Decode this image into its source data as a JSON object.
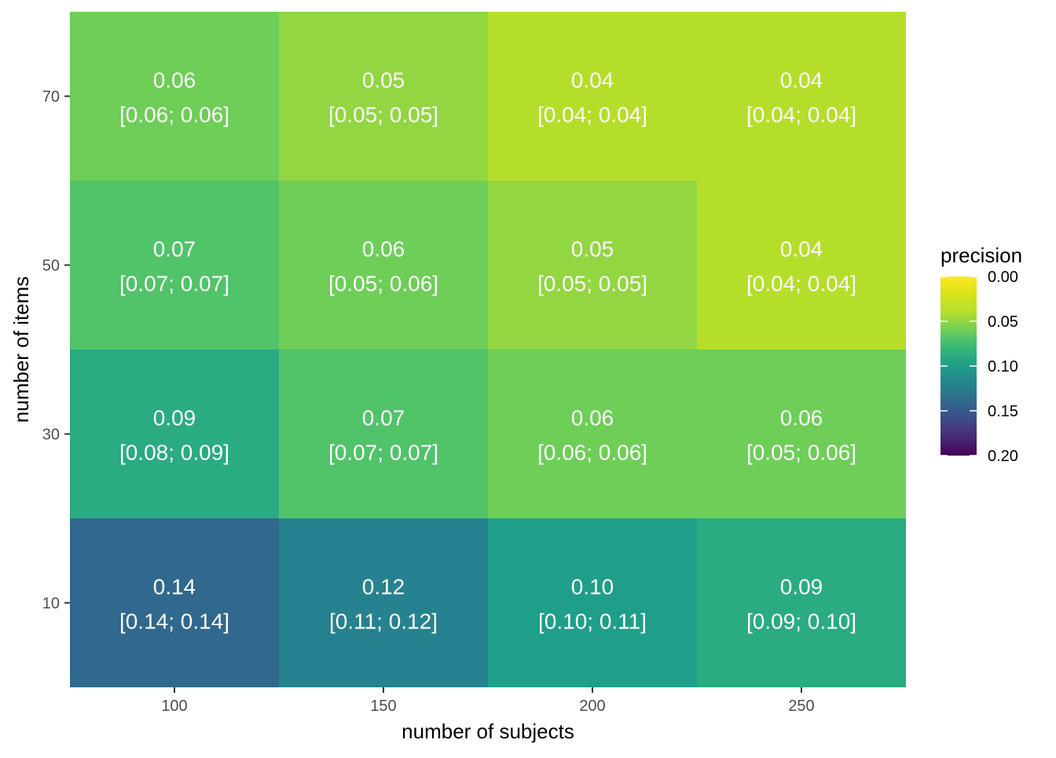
{
  "chart_data": {
    "type": "heatmap",
    "title": "",
    "xlabel": "number of subjects",
    "ylabel": "number of items",
    "x": [
      100,
      150,
      200,
      250
    ],
    "y": [
      10,
      30,
      50,
      70
    ],
    "xlim": [
      75,
      275
    ],
    "ylim": [
      0,
      80
    ],
    "x_ticks": [
      "100",
      "150",
      "200",
      "250"
    ],
    "y_ticks": [
      "10",
      "30",
      "50",
      "70"
    ],
    "grid": true,
    "cells": [
      {
        "x": 100,
        "y": 70,
        "value": 0.06,
        "label": "0.06",
        "ci": "[0.06; 0.06]"
      },
      {
        "x": 150,
        "y": 70,
        "value": 0.05,
        "label": "0.05",
        "ci": "[0.05; 0.05]"
      },
      {
        "x": 200,
        "y": 70,
        "value": 0.04,
        "label": "0.04",
        "ci": "[0.04; 0.04]"
      },
      {
        "x": 250,
        "y": 70,
        "value": 0.04,
        "label": "0.04",
        "ci": "[0.04; 0.04]"
      },
      {
        "x": 100,
        "y": 50,
        "value": 0.07,
        "label": "0.07",
        "ci": "[0.07; 0.07]"
      },
      {
        "x": 150,
        "y": 50,
        "value": 0.06,
        "label": "0.06",
        "ci": "[0.05; 0.06]"
      },
      {
        "x": 200,
        "y": 50,
        "value": 0.05,
        "label": "0.05",
        "ci": "[0.05; 0.05]"
      },
      {
        "x": 250,
        "y": 50,
        "value": 0.04,
        "label": "0.04",
        "ci": "[0.04; 0.04]"
      },
      {
        "x": 100,
        "y": 30,
        "value": 0.09,
        "label": "0.09",
        "ci": "[0.08; 0.09]"
      },
      {
        "x": 150,
        "y": 30,
        "value": 0.07,
        "label": "0.07",
        "ci": "[0.07; 0.07]"
      },
      {
        "x": 200,
        "y": 30,
        "value": 0.06,
        "label": "0.06",
        "ci": "[0.06; 0.06]"
      },
      {
        "x": 250,
        "y": 30,
        "value": 0.06,
        "label": "0.06",
        "ci": "[0.05; 0.06]"
      },
      {
        "x": 100,
        "y": 10,
        "value": 0.14,
        "label": "0.14",
        "ci": "[0.14; 0.14]"
      },
      {
        "x": 150,
        "y": 10,
        "value": 0.12,
        "label": "0.12",
        "ci": "[0.11; 0.12]"
      },
      {
        "x": 200,
        "y": 10,
        "value": 0.1,
        "label": "0.10",
        "ci": "[0.10; 0.11]"
      },
      {
        "x": 250,
        "y": 10,
        "value": 0.09,
        "label": "0.09",
        "ci": "[0.09; 0.10]"
      }
    ],
    "legend": {
      "title": "precision",
      "position": "right",
      "range": [
        0.0,
        0.2
      ],
      "reversed": true,
      "ticks": [
        "0.00",
        "0.05",
        "0.10",
        "0.15",
        "0.20"
      ],
      "tick_values": [
        0.0,
        0.05,
        0.1,
        0.15,
        0.2
      ],
      "palette": "viridis",
      "colors": [
        "#fde725",
        "#5ec962",
        "#21918c",
        "#3b528b",
        "#440154"
      ]
    },
    "colors": {
      "panel_background": "#e5e5e5",
      "grid": "#ffffff",
      "cell_text": "#ffffff",
      "axis_text": "#4d4d4d",
      "title_text": "#000000"
    }
  }
}
